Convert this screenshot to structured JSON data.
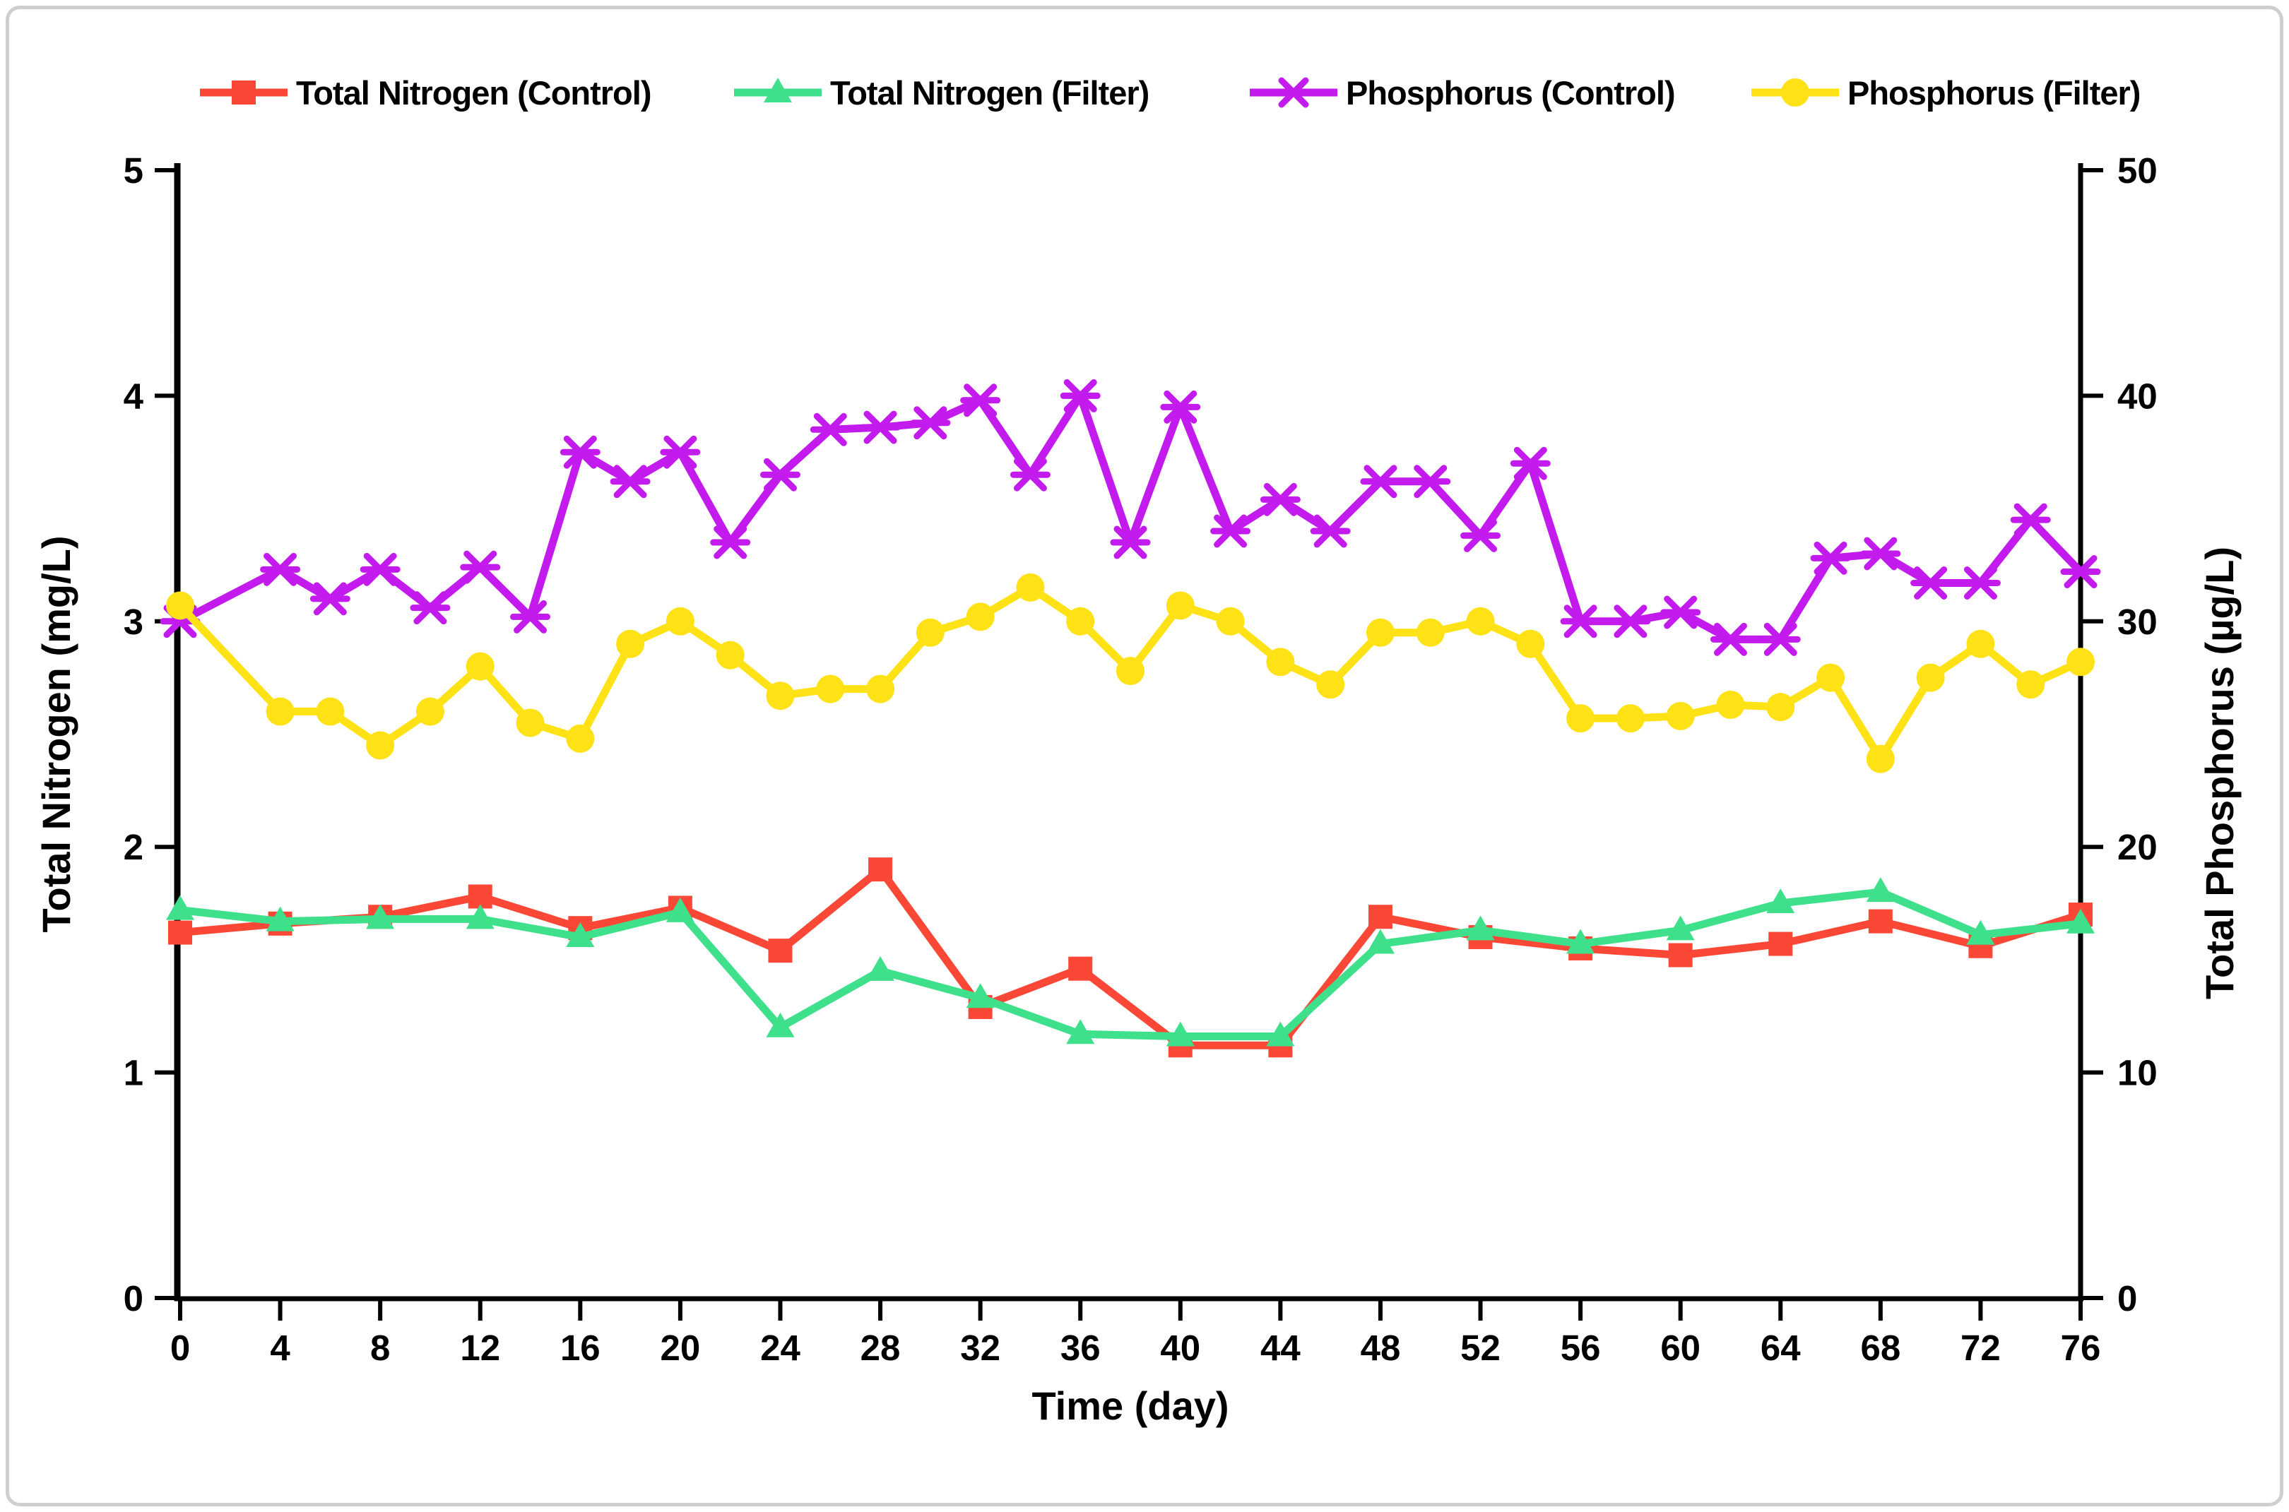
{
  "figure": {
    "background": "#ffffff",
    "border_color": "#cfcfcf",
    "axis_color": "#000000"
  },
  "chart_data": {
    "type": "line",
    "title": "",
    "xlabel": "Time (day)",
    "ylabel_left": "Total Nitrogen (mg/L)",
    "ylabel_right": "Total Phosphorus (µg/L)",
    "x_axis": {
      "min": 0,
      "max": 76,
      "tick_interval": 4,
      "tick_labels": [
        "0",
        "4",
        "8",
        "12",
        "16",
        "20",
        "24",
        "28",
        "32",
        "36",
        "40",
        "44",
        "48",
        "52",
        "56",
        "60",
        "64",
        "68",
        "72",
        "76"
      ]
    },
    "y_left_axis": {
      "min": 0,
      "max": 5,
      "ticks": [
        0,
        1,
        2,
        3,
        4,
        5
      ]
    },
    "y_right_axis": {
      "min": 0,
      "max": 50,
      "ticks": [
        0,
        10,
        20,
        30,
        40,
        50
      ]
    },
    "grid": false,
    "legend_position": "top",
    "series": [
      {
        "name": "Total Nitrogen (Control)",
        "axis": "left",
        "color": "#FB4836",
        "marker": "square",
        "x": [
          0,
          4,
          8,
          12,
          16,
          20,
          24,
          28,
          32,
          36,
          40,
          44,
          48,
          52,
          56,
          60,
          64,
          68,
          72,
          76
        ],
        "values": [
          1.62,
          1.66,
          1.69,
          1.78,
          1.64,
          1.73,
          1.54,
          1.9,
          1.29,
          1.46,
          1.12,
          1.12,
          1.69,
          1.6,
          1.55,
          1.52,
          1.57,
          1.67,
          1.56,
          1.7
        ]
      },
      {
        "name": "Total Nitrogen (Filter)",
        "axis": "left",
        "color": "#3FE08C",
        "marker": "triangle",
        "x": [
          0,
          4,
          8,
          12,
          16,
          20,
          24,
          28,
          32,
          36,
          40,
          44,
          48,
          52,
          56,
          60,
          64,
          68,
          72,
          76
        ],
        "values": [
          1.72,
          1.67,
          1.68,
          1.68,
          1.6,
          1.71,
          1.2,
          1.45,
          1.33,
          1.17,
          1.16,
          1.16,
          1.57,
          1.63,
          1.57,
          1.63,
          1.75,
          1.8,
          1.61,
          1.66
        ]
      },
      {
        "name": "Phosphorus (Control)",
        "axis": "right",
        "color": "#C31AEE",
        "marker": "asterisk",
        "x": [
          0,
          4,
          6,
          8,
          10,
          12,
          14,
          16,
          18,
          20,
          22,
          24,
          26,
          28,
          30,
          32,
          34,
          36,
          38,
          40,
          42,
          44,
          46,
          48,
          50,
          52,
          54,
          56,
          58,
          60,
          62,
          64,
          66,
          68,
          70,
          72,
          74,
          76
        ],
        "values": [
          30,
          32.3,
          31,
          32.3,
          30.6,
          32.4,
          30.2,
          37.5,
          36.2,
          37.5,
          33.5,
          36.5,
          38.5,
          38.6,
          38.8,
          39.8,
          36.5,
          40,
          33.5,
          39.5,
          34,
          35.4,
          34,
          36.2,
          36.2,
          33.8,
          37,
          30,
          30,
          30.4,
          29.2,
          29.2,
          32.8,
          33,
          31.7,
          31.7,
          34.5,
          32.2
        ]
      },
      {
        "name": "Phosphorus (Filter)",
        "axis": "right",
        "color": "#FFE215",
        "marker": "circle",
        "x": [
          0,
          4,
          6,
          8,
          10,
          12,
          14,
          16,
          18,
          20,
          22,
          24,
          26,
          28,
          30,
          32,
          34,
          36,
          38,
          40,
          42,
          44,
          46,
          48,
          50,
          52,
          54,
          56,
          58,
          60,
          62,
          64,
          66,
          68,
          70,
          72,
          74,
          76
        ],
        "values": [
          30.7,
          26,
          26,
          24.5,
          26,
          28,
          25.5,
          24.8,
          29,
          30,
          28.5,
          26.7,
          27,
          27,
          29.5,
          30.2,
          31.5,
          30,
          27.8,
          30.7,
          30,
          28.2,
          27.2,
          29.5,
          29.5,
          30,
          29,
          25.7,
          25.7,
          25.8,
          26.3,
          26.2,
          27.5,
          23.9,
          27.5,
          29,
          27.2,
          28.2
        ]
      }
    ]
  }
}
